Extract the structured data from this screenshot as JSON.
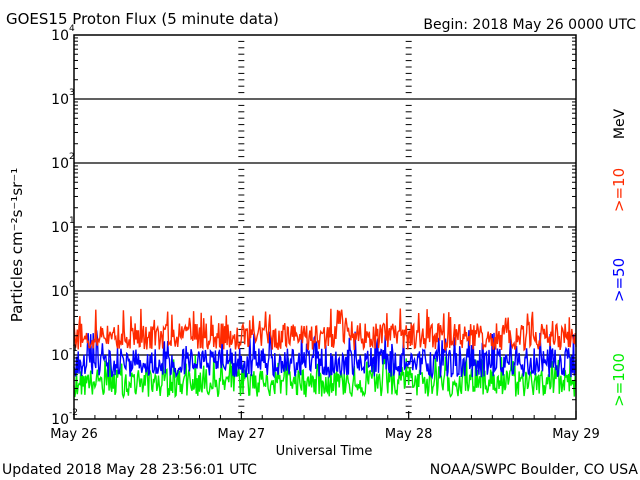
{
  "chart_data": {
    "type": "line",
    "title": "GOES15 Proton Flux (5 minute data)",
    "begin_label": "Begin: 2018 May 26 0000 UTC",
    "xlabel": "Universal Time",
    "ylabel": "Particles cm⁻²s⁻¹sr⁻¹",
    "y_scale": "log",
    "ylim": [
      0.01,
      10000
    ],
    "y_ticks": [
      {
        "value": 0.01,
        "base": "10",
        "exp": "-2"
      },
      {
        "value": 0.1,
        "base": "10",
        "exp": "-1"
      },
      {
        "value": 1,
        "base": "10",
        "exp": "0"
      },
      {
        "value": 10,
        "base": "10",
        "exp": "1"
      },
      {
        "value": 100,
        "base": "10",
        "exp": "2"
      },
      {
        "value": 1000,
        "base": "10",
        "exp": "3"
      },
      {
        "value": 10000,
        "base": "10",
        "exp": "4"
      }
    ],
    "x_ticks": [
      "May 26",
      "May 27",
      "May 28",
      "May 29"
    ],
    "xlim_days": [
      0,
      3
    ],
    "grid": true,
    "unit_label": "MeV",
    "colors": {
      "axis": "#000000",
      "s10": "#ff2a00",
      "s50": "#0000ff",
      "s100": "#00ee00"
    },
    "series": [
      {
        "name": ">=10",
        "color": "#ff2a00",
        "typical": 0.2,
        "low": 0.12,
        "high": 0.55
      },
      {
        "name": ">=50",
        "color": "#0000ff",
        "typical": 0.075,
        "low": 0.045,
        "high": 0.25
      },
      {
        "name": ">=100",
        "color": "#00ee00",
        "typical": 0.04,
        "low": 0.022,
        "high": 0.1
      }
    ]
  },
  "footer": {
    "updated": "Updated 2018 May 28 23:56:01 UTC",
    "credit": "NOAA/SWPC Boulder, CO USA"
  }
}
